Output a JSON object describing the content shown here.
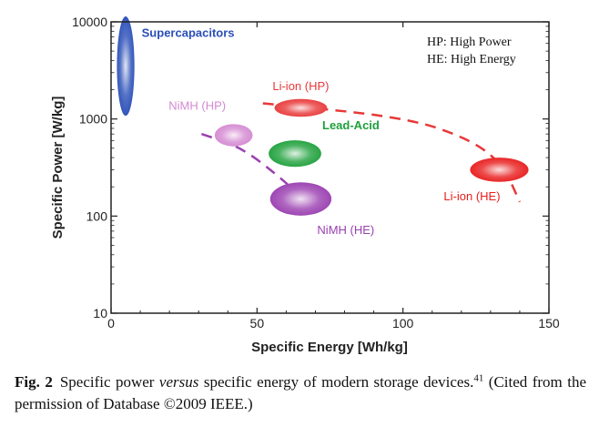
{
  "chart_data": {
    "type": "scatter",
    "xlabel": "Specific Energy [Wh/kg]",
    "ylabel": "Specific Power [W/kg]",
    "x_ticks": [
      0,
      50,
      100,
      150
    ],
    "y_ticks": [
      10,
      100,
      1000,
      10000
    ],
    "y_tick_labels": [
      "10",
      "100",
      "1000",
      "10000"
    ],
    "xlim": [
      0,
      150
    ],
    "ylim": [
      10,
      10000
    ],
    "y_scale": "log",
    "grid": false,
    "legend_notes": [
      "HP: High Power",
      "HE: High Energy"
    ],
    "series": [
      {
        "name": "Supercapacitors",
        "x": 5,
        "y": 3500,
        "x_extent": [
          2,
          8
        ],
        "y_extent": [
          900,
          9500
        ],
        "color": "#2a4fb8"
      },
      {
        "name": "Li-ion (HP)",
        "x": 65,
        "y": 1300,
        "x_extent": [
          56,
          74
        ],
        "y_extent": [
          1050,
          1600
        ],
        "color": "#e83838"
      },
      {
        "name": "NiMH (HP)",
        "x": 42,
        "y": 680,
        "x_extent": [
          35,
          48
        ],
        "y_extent": [
          520,
          880
        ],
        "color": "#d48ad2"
      },
      {
        "name": "Lead-Acid",
        "x": 63,
        "y": 440,
        "x_extent": [
          54,
          72
        ],
        "y_extent": [
          320,
          600
        ],
        "color": "#1fa03c"
      },
      {
        "name": "NiMH (HE)",
        "x": 65,
        "y": 150,
        "x_extent": [
          54,
          75
        ],
        "y_extent": [
          100,
          220
        ],
        "color": "#9a3fb0"
      },
      {
        "name": "Li-ion (HE)",
        "x": 133,
        "y": 300,
        "x_extent": [
          123,
          143
        ],
        "y_extent": [
          225,
          400
        ],
        "color": "#e81d1d"
      }
    ],
    "trend_lines": [
      {
        "series": "Li-ion",
        "color": "#e83838",
        "points": [
          [
            52,
            1450
          ],
          [
            100,
            1050
          ],
          [
            122,
            640
          ],
          [
            134,
            350
          ],
          [
            140,
            140
          ]
        ]
      },
      {
        "series": "NiMH",
        "color": "#9a3fb0",
        "points": [
          [
            31,
            700
          ],
          [
            44,
            520
          ],
          [
            56,
            280
          ],
          [
            66,
            150
          ],
          [
            73,
            115
          ]
        ]
      }
    ]
  },
  "caption": {
    "figure_number": "Fig. 2",
    "text_before": "Specific power ",
    "text_italic": "versus",
    "text_after": " specific energy of modern storage devices.",
    "reference": "41",
    "text_end": " (Cited from the permission of Database ©2009 IEEE.)"
  }
}
